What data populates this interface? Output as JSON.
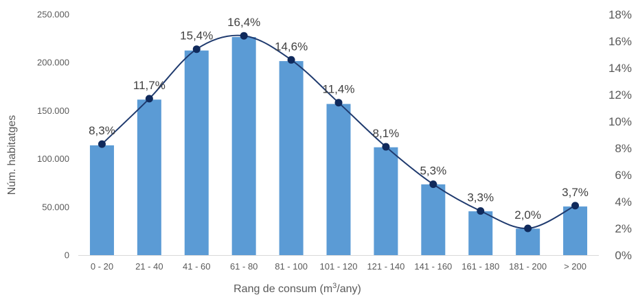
{
  "chart_data": {
    "type": "bar",
    "categories": [
      "0 - 20",
      "21 - 40",
      "41 - 60",
      "61 - 80",
      "81 - 100",
      "101 - 120",
      "121 - 140",
      "141 - 160",
      "161 - 180",
      "181 - 200",
      "> 200"
    ],
    "series": [
      {
        "type": "bar",
        "axis": "left",
        "values": [
          114000,
          161500,
          212500,
          226500,
          201500,
          157000,
          112000,
          73500,
          45500,
          27500,
          50500
        ],
        "color": "#5b9bd5"
      },
      {
        "type": "line",
        "axis": "right",
        "values": [
          8.3,
          11.7,
          15.4,
          16.4,
          14.6,
          11.4,
          8.1,
          5.3,
          3.3,
          2.0,
          3.7
        ],
        "data_labels": [
          "8,3%",
          "11,7%",
          "15,4%",
          "16,4%",
          "14,6%",
          "11,4%",
          "8,1%",
          "5,3%",
          "3,3%",
          "2,0%",
          "3,7%"
        ],
        "color": "#1f3a6e",
        "smooth": true
      }
    ],
    "xlabel_main": "Rang de consum (m",
    "xlabel_sup": "3",
    "xlabel_end": "/any)",
    "ylabel": "Núm. habitatges",
    "ylim": [
      0,
      250000
    ],
    "y_ticks": [
      "0",
      "50.000",
      "100.000",
      "150.000",
      "200.000",
      "250.000"
    ],
    "y2lim": [
      0,
      18
    ],
    "y2_ticks": [
      "0%",
      "2%",
      "4%",
      "6%",
      "8%",
      "10%",
      "12%",
      "14%",
      "16%",
      "18%"
    ],
    "grid": false,
    "legend": "none"
  }
}
